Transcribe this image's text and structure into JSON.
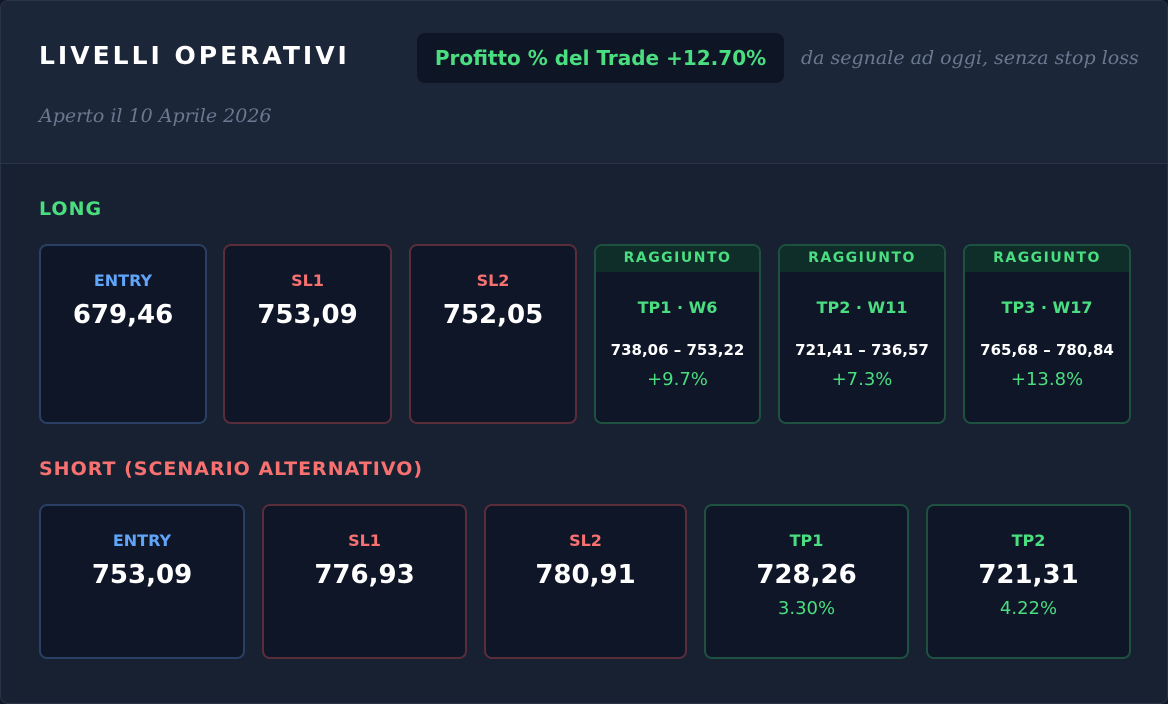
{
  "header": {
    "title": "LIVELLI OPERATIVI",
    "badge": "Profitto % del Trade +12.70%",
    "note": "da segnale ad oggi, senza stop loss",
    "opened": "Aperto il 10 Aprile 2026"
  },
  "long": {
    "title": "LONG",
    "cards": [
      {
        "label": "ENTRY",
        "value": "679,46"
      },
      {
        "label": "SL1",
        "value": "753,09"
      },
      {
        "label": "SL2",
        "value": "752,05"
      },
      {
        "status": "RAGGIUNTO",
        "label": "TP1 · W6",
        "range": "738,06 – 753,22",
        "change": "+9.7%"
      },
      {
        "status": "RAGGIUNTO",
        "label": "TP2 · W11",
        "range": "721,41 – 736,57",
        "change": "+7.3%"
      },
      {
        "status": "RAGGIUNTO",
        "label": "TP3 · W17",
        "range": "765,68 – 780,84",
        "change": "+13.8%"
      }
    ]
  },
  "short": {
    "title": "SHORT (SCENARIO ALTERNATIVO)",
    "cards": [
      {
        "label": "ENTRY",
        "value": "753,09"
      },
      {
        "label": "SL1",
        "value": "776,93"
      },
      {
        "label": "SL2",
        "value": "780,91"
      },
      {
        "label": "TP1",
        "value": "728,26",
        "change": "3.30%"
      },
      {
        "label": "TP2",
        "value": "721,31",
        "change": "4.22%"
      }
    ]
  }
}
